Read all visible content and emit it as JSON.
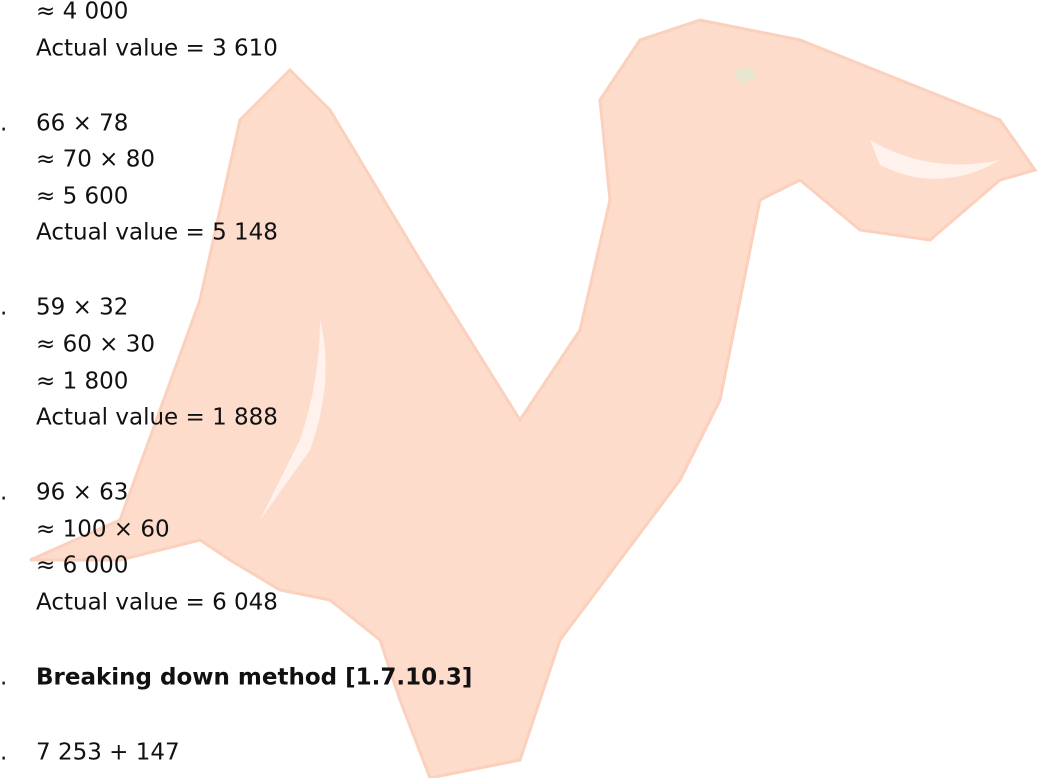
{
  "blocks": [
    {
      "lines": [
        "≈ 4 000",
        "Actual value = 3 610"
      ]
    },
    {
      "marker": ".",
      "lines": [
        "66 × 78",
        "≈ 70 × 80",
        "≈ 5 600",
        "Actual value = 5 148"
      ]
    },
    {
      "marker": ".",
      "lines": [
        "59 × 32",
        "≈ 60 × 30",
        "≈ 1 800",
        "Actual value = 1 888"
      ]
    },
    {
      "marker": ".",
      "lines": [
        "96 × 63",
        "≈ 100 × 60",
        "≈ 6 000",
        "Actual value = 6 048"
      ]
    }
  ],
  "heading": {
    "marker": ".",
    "text": "Breaking down method [1.7.10.3]"
  },
  "last": {
    "marker": ".",
    "lines": [
      "7 253 + 147"
    ]
  }
}
